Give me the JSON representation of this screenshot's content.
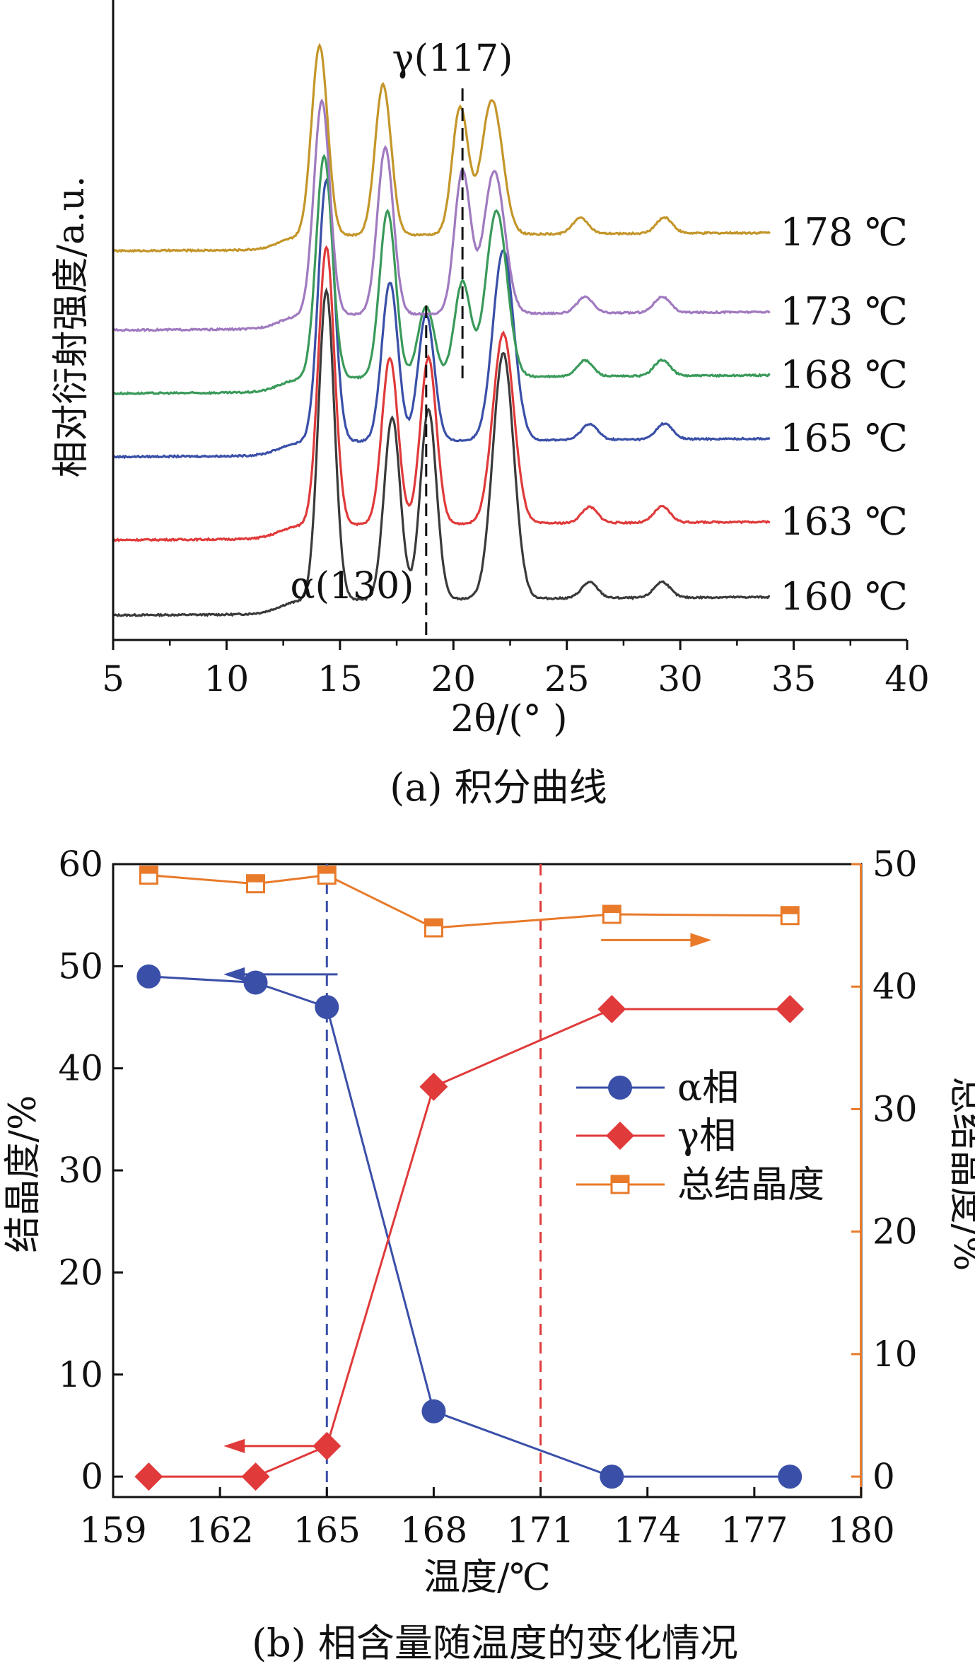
{
  "chart_data": [
    {
      "type": "line",
      "subplot": "a",
      "caption": "(a) 积分曲线",
      "xlabel": "2θ/(° )",
      "ylabel": "相对衍射强度/a.u.",
      "xlim": [
        5,
        40
      ],
      "xticks": [
        5,
        10,
        15,
        20,
        25,
        30,
        35,
        40
      ],
      "yticks_shown": false,
      "annotations": [
        {
          "text": "γ(117)",
          "x": 20.4
        },
        {
          "text": "α(130)",
          "x": 18.8
        }
      ],
      "peak_positions": [
        14.3,
        17.1,
        18.8,
        20.4,
        21.9,
        25.8,
        29.2
      ],
      "series": [
        {
          "name": "160 ℃",
          "color": "#3a3a3a",
          "baseline": 0.0,
          "peaks": [
            [
              14.4,
              3.9
            ],
            [
              17.3,
              2.3
            ],
            [
              18.9,
              2.4
            ],
            [
              22.2,
              3.1
            ],
            [
              26.0,
              0.2
            ],
            [
              29.2,
              0.2
            ]
          ]
        },
        {
          "name": "163 ℃",
          "color": "#e03a3a",
          "baseline": 0.95,
          "peaks": [
            [
              14.4,
              3.5
            ],
            [
              17.2,
              2.1
            ],
            [
              18.9,
              2.1
            ],
            [
              22.2,
              2.4
            ],
            [
              26.0,
              0.2
            ],
            [
              29.2,
              0.2
            ]
          ]
        },
        {
          "name": "165 ℃",
          "color": "#3a4fa8",
          "baseline": 2.0,
          "peaks": [
            [
              14.4,
              3.3
            ],
            [
              17.2,
              2.0
            ],
            [
              18.8,
              1.6
            ],
            [
              22.2,
              2.4
            ],
            [
              26.0,
              0.2
            ],
            [
              29.3,
              0.2
            ]
          ]
        },
        {
          "name": "168 ℃",
          "color": "#3a9a5a",
          "baseline": 2.8,
          "peaks": [
            [
              14.3,
              2.8
            ],
            [
              17.1,
              2.1
            ],
            [
              18.8,
              0.9
            ],
            [
              20.4,
              1.2
            ],
            [
              21.9,
              2.1
            ],
            [
              25.8,
              0.2
            ],
            [
              29.2,
              0.2
            ]
          ]
        },
        {
          "name": "173 ℃",
          "color": "#a07ac0",
          "baseline": 3.6,
          "peaks": [
            [
              14.2,
              2.7
            ],
            [
              17.0,
              2.1
            ],
            [
              20.4,
              1.8
            ],
            [
              21.8,
              1.8
            ],
            [
              25.8,
              0.2
            ],
            [
              29.2,
              0.2
            ]
          ]
        },
        {
          "name": "178 ℃",
          "color": "#c4962a",
          "baseline": 4.6,
          "peaks": [
            [
              14.1,
              2.4
            ],
            [
              16.9,
              1.9
            ],
            [
              20.3,
              1.6
            ],
            [
              21.7,
              1.7
            ],
            [
              25.6,
              0.2
            ],
            [
              29.3,
              0.2
            ]
          ]
        }
      ]
    },
    {
      "type": "line",
      "subplot": "b",
      "caption": "(b) 相含量随温度的变化情况",
      "xlabel": "温度/℃",
      "ylabel": "结晶度/%",
      "ylabel_right": "总结晶度/%",
      "xlim": [
        159,
        180
      ],
      "ylim": [
        -2,
        60
      ],
      "ylim_right": [
        -1.67,
        50
      ],
      "xticks": [
        159,
        162,
        165,
        168,
        171,
        174,
        177,
        180
      ],
      "yticks": [
        0,
        10,
        20,
        30,
        40,
        50,
        60
      ],
      "yticks_right": [
        0,
        10,
        20,
        30,
        40,
        50
      ],
      "vlines": [
        {
          "x": 165,
          "color": "#3a4fa8"
        },
        {
          "x": 171,
          "color": "#e03a3a"
        }
      ],
      "legend_position": "center-right",
      "arrows": [
        {
          "from": [
            165.3,
            49.2
          ],
          "to": [
            162.1,
            49.2
          ],
          "color": "#3a4fa8"
        },
        {
          "from": [
            165.3,
            3.0
          ],
          "to": [
            162.1,
            3.0
          ],
          "color": "#e03a3a"
        },
        {
          "from": [
            172.7,
            43.8
          ],
          "to": [
            175.8,
            43.8
          ],
          "color": "#e87a2a",
          "axis": "right"
        }
      ],
      "series": [
        {
          "name": "α相",
          "color": "#3a4fa8",
          "marker": "circle",
          "axis": "left",
          "x": [
            160,
            163,
            165,
            168,
            173,
            178
          ],
          "values": [
            49.0,
            48.4,
            46.0,
            6.4,
            0.0,
            0.0
          ]
        },
        {
          "name": "γ相",
          "color": "#e03a3a",
          "marker": "diamond",
          "axis": "left",
          "x": [
            160,
            163,
            165,
            168,
            173,
            178
          ],
          "values": [
            0.0,
            0.0,
            3.0,
            38.2,
            45.8,
            45.8
          ]
        },
        {
          "name": "总结晶度",
          "color": "#e87a2a",
          "marker": "square-open",
          "axis": "right",
          "x": [
            160,
            163,
            165,
            168,
            173,
            178
          ],
          "values": [
            49.1,
            48.4,
            49.1,
            44.8,
            45.9,
            45.8
          ]
        }
      ]
    }
  ]
}
